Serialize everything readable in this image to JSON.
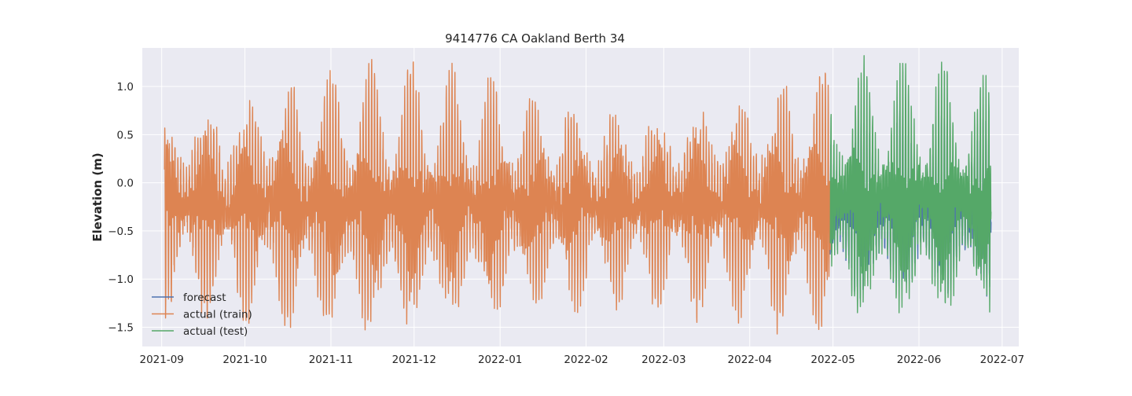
{
  "chart_data": {
    "type": "line",
    "title": "9414776 CA Oakland Berth 34",
    "xlabel": "",
    "ylabel": "Elevation (m)",
    "x_axis": {
      "kind": "date",
      "range": [
        "2021-08-25",
        "2022-07-07"
      ],
      "ticks": [
        "2021-09-01",
        "2021-10-01",
        "2021-11-01",
        "2021-12-01",
        "2022-01-01",
        "2022-02-01",
        "2022-03-01",
        "2022-04-01",
        "2022-05-01",
        "2022-06-01",
        "2022-07-01"
      ],
      "tick_labels": [
        "2021-09",
        "2021-10",
        "2021-11",
        "2021-12",
        "2022-01",
        "2022-02",
        "2022-03",
        "2022-04",
        "2022-05",
        "2022-06",
        "2022-07"
      ]
    },
    "y_axis": {
      "range": [
        -1.7,
        1.4
      ],
      "ticks": [
        -1.5,
        -1.0,
        -0.5,
        0.0,
        0.5,
        1.0
      ],
      "tick_labels": [
        "−1.5",
        "−1.0",
        "−0.5",
        "0.0",
        "0.5",
        "1.0"
      ]
    },
    "grid": true,
    "legend_position": "lower-left",
    "style": "seaborn-darkgrid",
    "colors": {
      "background": "#eaeaf2",
      "grid": "#ffffff"
    },
    "series": [
      {
        "name": "forecast",
        "color": "#4c72b0",
        "start": "2022-04-30",
        "end": "2022-06-27",
        "value_range": [
          -1.2,
          0.78
        ],
        "points": [
          [
            "2022-05-02",
            0.72
          ],
          [
            "2022-05-09",
            -1.2
          ],
          [
            "2022-05-16",
            0.75
          ],
          [
            "2022-05-23",
            -1.0
          ],
          [
            "2022-05-30",
            0.55
          ],
          [
            "2022-06-06",
            -1.1
          ],
          [
            "2022-06-13",
            0.78
          ],
          [
            "2022-06-20",
            -1.0
          ],
          [
            "2022-06-25",
            0.72
          ]
        ]
      },
      {
        "name": "actual (train)",
        "color": "#dd8452",
        "start": "2021-09-02",
        "end": "2022-04-30",
        "value_range": [
          -1.57,
          1.28
        ],
        "points": [
          [
            "2021-09-05",
            0.98
          ],
          [
            "2021-09-07",
            -1.15
          ],
          [
            "2021-09-20",
            1.07
          ],
          [
            "2021-09-22",
            -1.27
          ],
          [
            "2021-10-06",
            0.8
          ],
          [
            "2021-10-13",
            -1.31
          ],
          [
            "2021-10-21",
            0.84
          ],
          [
            "2021-11-04",
            1.1
          ],
          [
            "2021-11-18",
            1.08
          ],
          [
            "2021-11-20",
            -1.38
          ],
          [
            "2021-12-03",
            1.25
          ],
          [
            "2021-12-05",
            -1.32
          ],
          [
            "2022-01-01",
            1.28
          ],
          [
            "2022-01-03",
            -1.5
          ],
          [
            "2022-01-31",
            1.25
          ],
          [
            "2022-02-01",
            -1.57
          ],
          [
            "2022-03-01",
            1.1
          ],
          [
            "2022-03-01",
            -1.55
          ],
          [
            "2022-03-29",
            1.1
          ],
          [
            "2022-04-01",
            -0.95
          ],
          [
            "2022-04-20",
            1.0
          ],
          [
            "2022-04-22",
            -1.27
          ]
        ]
      },
      {
        "name": "actual (test)",
        "color": "#55a868",
        "start": "2022-04-30",
        "end": "2022-06-27",
        "value_range": [
          -1.35,
          1.32
        ],
        "points": [
          [
            "2022-05-03",
            0.93
          ],
          [
            "2022-05-10",
            -0.95
          ],
          [
            "2022-05-15",
            1.12
          ],
          [
            "2022-05-18",
            -1.2
          ],
          [
            "2022-05-26",
            1.05
          ],
          [
            "2022-05-29",
            -1.35
          ],
          [
            "2022-06-03",
            -1.0
          ],
          [
            "2022-06-10",
            0.95
          ],
          [
            "2022-06-14",
            1.32
          ],
          [
            "2022-06-16",
            -1.35
          ],
          [
            "2022-06-20",
            1.2
          ],
          [
            "2022-06-26",
            -1.18
          ]
        ]
      }
    ]
  }
}
